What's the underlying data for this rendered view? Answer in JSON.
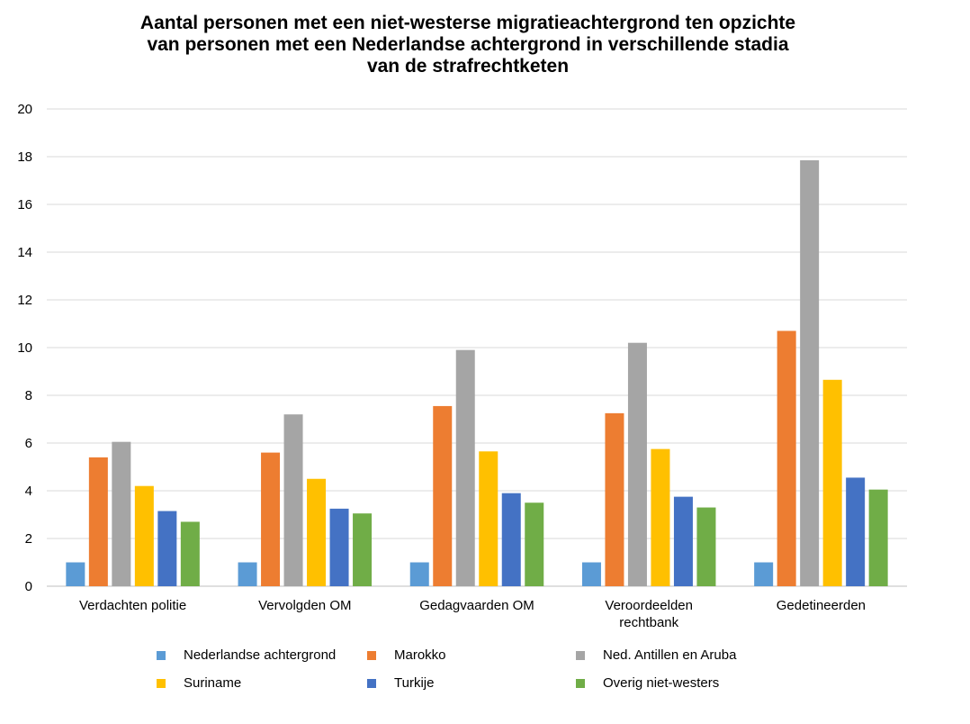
{
  "chart_data": {
    "type": "bar",
    "title_lines": [
      "Aantal personen met een niet-westerse migratieachtergrond ten opzichte",
      "van personen met een Nederlandse achtergrond in verschillende stadia",
      "van de strafrechtketen"
    ],
    "categories": [
      [
        "Verdachten politie"
      ],
      [
        "Vervolgden OM"
      ],
      [
        "Gedagvaarden OM"
      ],
      [
        "Veroordeelden",
        "rechtbank"
      ],
      [
        "Gedetineerden"
      ]
    ],
    "series": [
      {
        "name": "Nederlandse achtergrond",
        "color": "#5B9BD5",
        "values": [
          1,
          1,
          1,
          1,
          1
        ]
      },
      {
        "name": "Marokko",
        "color": "#ED7D31",
        "values": [
          5.4,
          5.6,
          7.55,
          7.25,
          10.7
        ]
      },
      {
        "name": "Ned. Antillen en Aruba",
        "color": "#A5A5A5",
        "values": [
          6.05,
          7.2,
          9.9,
          10.2,
          17.85
        ]
      },
      {
        "name": "Suriname",
        "color": "#FFC000",
        "values": [
          4.2,
          4.5,
          5.65,
          5.75,
          8.65
        ]
      },
      {
        "name": "Turkije",
        "color": "#4472C4",
        "values": [
          3.15,
          3.25,
          3.9,
          3.75,
          4.55
        ]
      },
      {
        "name": "Overig niet-westers",
        "color": "#70AD47",
        "values": [
          2.7,
          3.05,
          3.5,
          3.3,
          4.05
        ]
      }
    ],
    "yticks": [
      "0",
      "2",
      "4",
      "6",
      "8",
      "10",
      "12",
      "14",
      "16",
      "18",
      "20"
    ],
    "ylim": [
      0,
      20
    ],
    "grid": true,
    "legend": "bottom"
  }
}
